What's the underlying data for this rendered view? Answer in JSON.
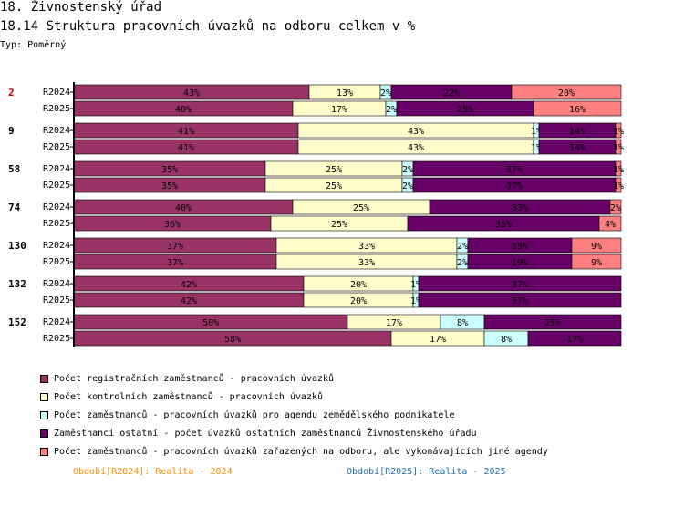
{
  "header": {
    "title": "18. Živnostenský úřad",
    "chart_title": "18.14 Struktura pracovních úvazků na odboru celkem v %",
    "type_label": "Typ: Poměrný"
  },
  "colors": {
    "series": [
      "#993366",
      "#ffffcc",
      "#ccffff",
      "#660066",
      "#ff8080"
    ],
    "group_label_red": "#cc0000",
    "period_2024": "#ff8c00",
    "period_2025": "#1f6fb5"
  },
  "legend": [
    "Počet registračních zaměstnanců - pracovních úvazků",
    "Počet kontrolních zaměstnanců - pracovních úvazků",
    "Počet zaměstnanců - pracovních úvazků pro agendu zemědělského podnikatele",
    "Zaměstnanci ostatní - počet úvazků ostatních zaměstnanců Živnostenského úřadu",
    "Počet zaměstnanců - pracovních úvazků zařazených na odboru, ale vykonávajících jiné agendy"
  ],
  "footer": {
    "period_2024": "Období[R2024]: Realita - 2024",
    "period_2025": "Období[R2025]: Realita - 2025"
  },
  "chart_data": {
    "type": "bar",
    "orientation": "horizontal",
    "stacked": "percent",
    "xlim": [
      0,
      100
    ],
    "groups": [
      {
        "label": "2",
        "highlight": true,
        "rows": [
          {
            "label": "R2024",
            "values": [
              43,
              13,
              2,
              22,
              20
            ],
            "labels": [
              "43%",
              "13%",
              "2%",
              "22%",
              "20%"
            ]
          },
          {
            "label": "R2025",
            "values": [
              40,
              17,
              2,
              25,
              16
            ],
            "labels": [
              "40%",
              "17%",
              "2%",
              "25%",
              "16%"
            ]
          }
        ]
      },
      {
        "label": "9",
        "highlight": false,
        "rows": [
          {
            "label": "R2024",
            "values": [
              41,
              43,
              1,
              14,
              1
            ],
            "labels": [
              "41%",
              "43%",
              "1%",
              "14%",
              "1%"
            ]
          },
          {
            "label": "R2025",
            "values": [
              41,
              43,
              1,
              14,
              1
            ],
            "labels": [
              "41%",
              "43%",
              "1%",
              "14%",
              "1%"
            ]
          }
        ]
      },
      {
        "label": "58",
        "highlight": false,
        "rows": [
          {
            "label": "R2024",
            "values": [
              35,
              25,
              2,
              37,
              1
            ],
            "labels": [
              "35%",
              "25%",
              "2%",
              "37%",
              "1%"
            ]
          },
          {
            "label": "R2025",
            "values": [
              35,
              25,
              2,
              37,
              1
            ],
            "labels": [
              "35%",
              "25%",
              "2%",
              "37%",
              "1%"
            ]
          }
        ]
      },
      {
        "label": "74",
        "highlight": false,
        "rows": [
          {
            "label": "R2024",
            "values": [
              40,
              25,
              0,
              33,
              2
            ],
            "labels": [
              "40%",
              "25%",
              "",
              "33%",
              "2%"
            ]
          },
          {
            "label": "R2025",
            "values": [
              36,
              25,
              0,
              35,
              4
            ],
            "labels": [
              "36%",
              "25%",
              "",
              "35%",
              "4%"
            ]
          }
        ]
      },
      {
        "label": "130",
        "highlight": false,
        "rows": [
          {
            "label": "R2024",
            "values": [
              37,
              33,
              2,
              19,
              9
            ],
            "labels": [
              "37%",
              "33%",
              "2%",
              "19%",
              "9%"
            ]
          },
          {
            "label": "R2025",
            "values": [
              37,
              33,
              2,
              19,
              9
            ],
            "labels": [
              "37%",
              "33%",
              "2%",
              "19%",
              "9%"
            ]
          }
        ]
      },
      {
        "label": "132",
        "highlight": false,
        "rows": [
          {
            "label": "R2024",
            "values": [
              42,
              20,
              1,
              37,
              0
            ],
            "labels": [
              "42%",
              "20%",
              "1%",
              "37%",
              ""
            ]
          },
          {
            "label": "R2025",
            "values": [
              42,
              20,
              1,
              37,
              0
            ],
            "labels": [
              "42%",
              "20%",
              "1%",
              "37%",
              ""
            ]
          }
        ]
      },
      {
        "label": "152",
        "highlight": false,
        "rows": [
          {
            "label": "R2024",
            "values": [
              50,
              17,
              8,
              25,
              0
            ],
            "labels": [
              "50%",
              "17%",
              "8%",
              "25%",
              ""
            ]
          },
          {
            "label": "R2025",
            "values": [
              58,
              17,
              8,
              17,
              0
            ],
            "labels": [
              "58%",
              "17%",
              "8%",
              "17%",
              ""
            ]
          }
        ]
      }
    ]
  }
}
